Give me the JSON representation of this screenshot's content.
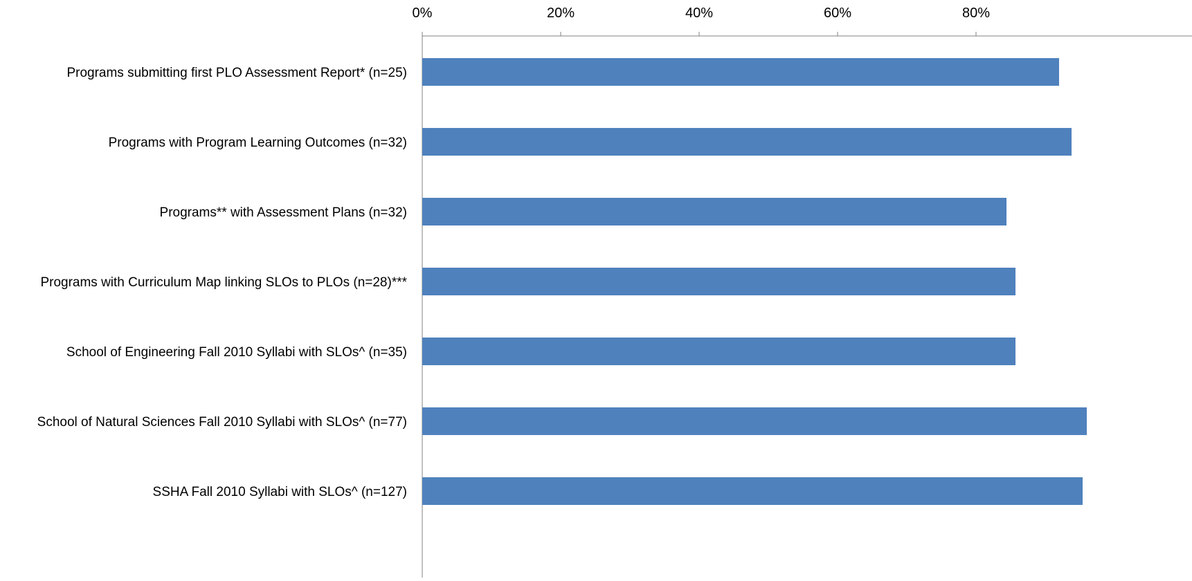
{
  "chart_data": {
    "type": "bar",
    "orientation": "horizontal",
    "categories": [
      "Programs submitting first PLO Assessment Report* (n=25)",
      "Programs with Program Learning Outcomes (n=32)",
      "Programs** with Assessment Plans (n=32)",
      "Programs with Curriculum Map linking SLOs to PLOs (n=28)***",
      "School of Engineering Fall 2010 Syllabi with SLOs^ (n=35)",
      "School of Natural Sciences Fall 2010 Syllabi with SLOs^ (n=77)",
      "SSHA Fall 2010 Syllabi with SLOs^ (n=127)"
    ],
    "series": [
      {
        "values": [
          92,
          93.8,
          84.4,
          85.7,
          85.7,
          96,
          95.4
        ]
      }
    ],
    "x_ticks": [
      "0%",
      "20%",
      "40%",
      "60%",
      "80%"
    ],
    "x_tick_values": [
      0,
      20,
      40,
      60,
      80
    ],
    "xlim": [
      0,
      100
    ],
    "x_axis_position": "top",
    "grid": false,
    "legend": "none",
    "title": "",
    "xlabel": "",
    "ylabel": "",
    "colors": {
      "bar": "#4F81BD",
      "axis": "#808080",
      "text": "#000000"
    }
  }
}
